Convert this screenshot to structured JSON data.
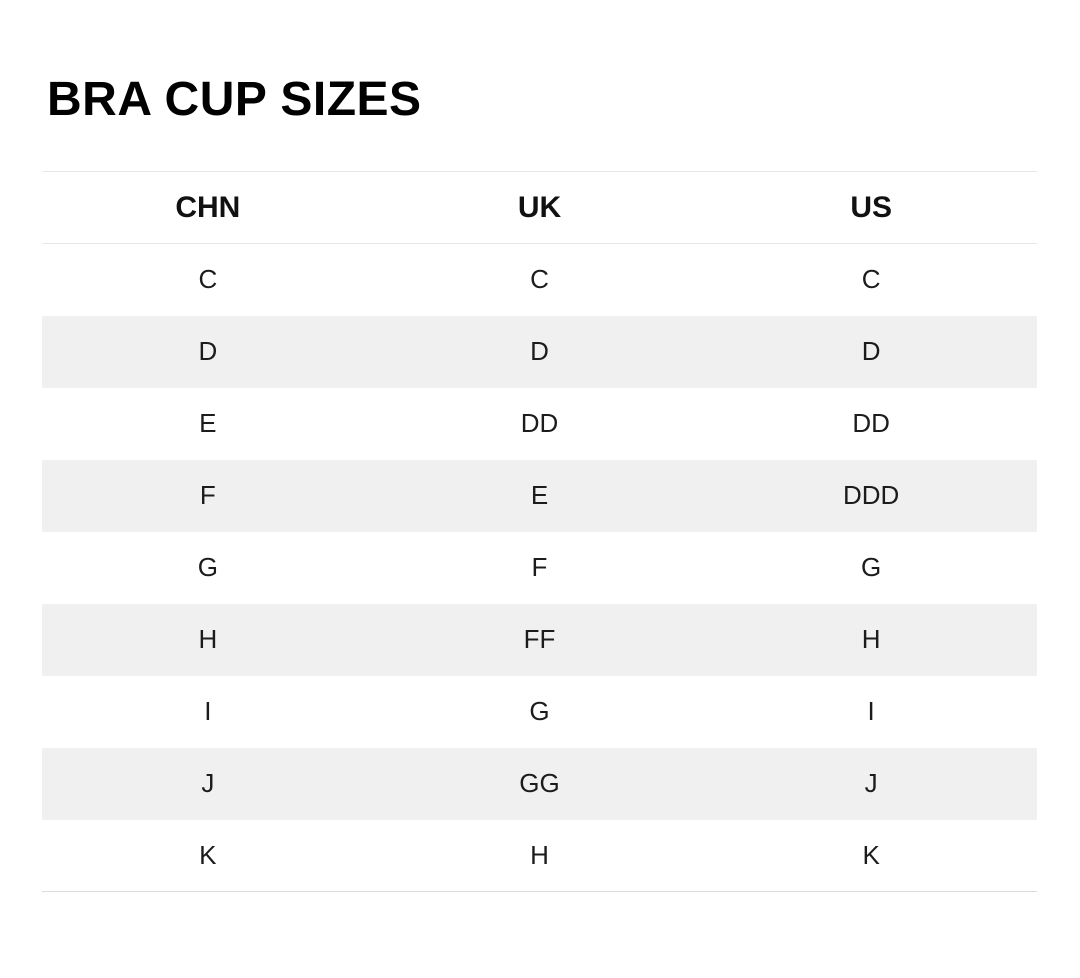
{
  "page": {
    "title": "BRA CUP SIZES"
  },
  "colors": {
    "background": "#ffffff",
    "title_text": "#000000",
    "header_text": "#111111",
    "cell_text": "#1c1c1c",
    "row_stripe": "#f0f0f0",
    "rule_line": "#e7e7e7",
    "bottom_rule": "#dcdcdc"
  },
  "table": {
    "columns": [
      "CHN",
      "UK",
      "US"
    ],
    "rows": [
      [
        "C",
        "C",
        "C"
      ],
      [
        "D",
        "D",
        "D"
      ],
      [
        "E",
        "DD",
        "DD"
      ],
      [
        "F",
        "E",
        "DDD"
      ],
      [
        "G",
        "F",
        "G"
      ],
      [
        "H",
        "FF",
        "H"
      ],
      [
        "I",
        "G",
        "I"
      ],
      [
        "J",
        "GG",
        "J"
      ],
      [
        "K",
        "H",
        "K"
      ]
    ]
  }
}
